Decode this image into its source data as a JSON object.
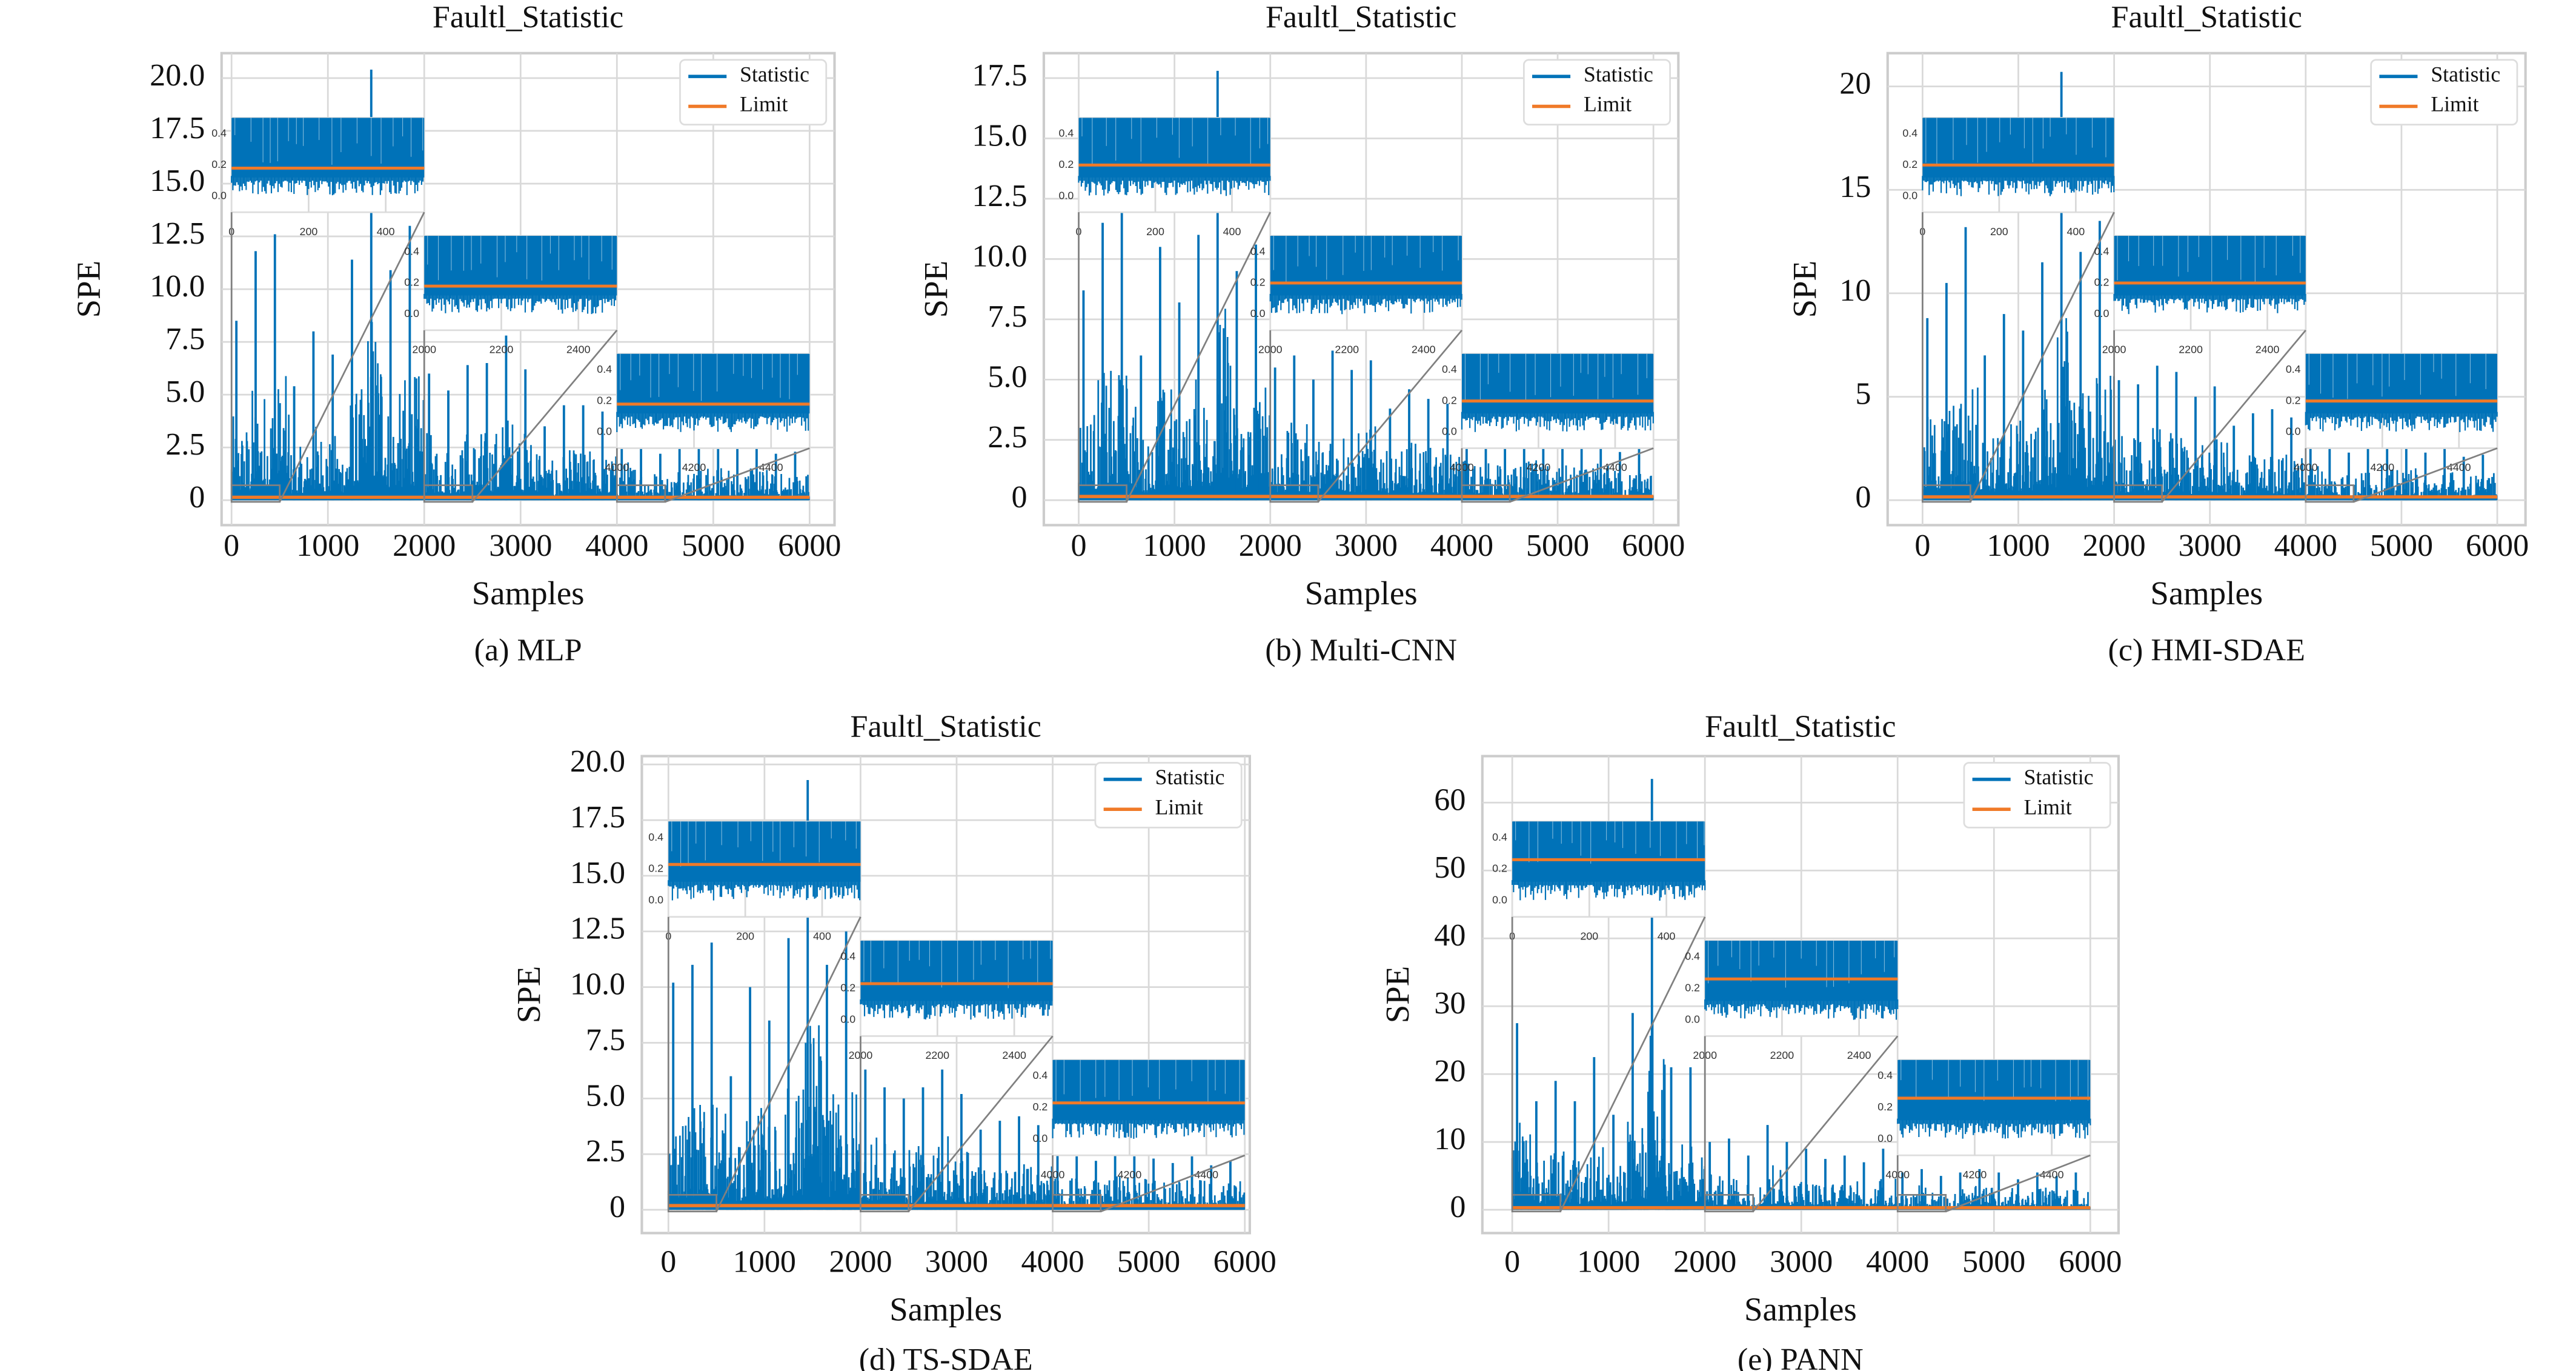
{
  "colors": {
    "statistic": "#0072b8",
    "limit": "#f07a28",
    "grid": "#d9d9d9",
    "connector": "#808080"
  },
  "chart_data": [
    {
      "type": "line",
      "title": "Faultl_Statistic",
      "xlabel": "Samples",
      "ylabel": "SPE",
      "caption": "(a) MLP",
      "xlim": [
        0,
        6000
      ],
      "ylim": [
        0,
        20.0
      ],
      "grid": true,
      "legend_position": "top-right",
      "xticks": [
        "0",
        "1000",
        "2000",
        "3000",
        "4000",
        "5000",
        "6000"
      ],
      "yticks": [
        "0",
        "2.5",
        "5.0",
        "7.5",
        "10.0",
        "12.5",
        "15.0",
        "17.5",
        "20.0"
      ],
      "series": [
        {
          "name": "Statistic",
          "x": [
            0,
            200,
            400,
            600,
            800,
            1000,
            1200,
            1400,
            1600,
            1800,
            2000,
            2200,
            2400,
            2600,
            2800,
            3000,
            3200,
            3400,
            3600,
            3800,
            4000,
            4200,
            4400,
            4600,
            4800,
            5000,
            5200,
            5400,
            5600,
            5800
          ],
          "y": [
            8.5,
            11.8,
            12.6,
            5.4,
            8.0,
            6.9,
            11.4,
            20.4,
            10.9,
            13.0,
            6.0,
            5.2,
            6.4,
            6.5,
            7.8,
            6.2,
            3.5,
            4.5,
            4.5,
            4.2,
            3.2,
            2.8,
            2.2,
            3.0,
            2.6,
            2.8,
            2.5,
            2.6,
            2.2,
            2.3
          ]
        },
        {
          "name": "Limit",
          "value": 0.1
        }
      ],
      "insets": [
        {
          "xlim": [
            0,
            500
          ],
          "xticks": [
            "0",
            "200",
            "400"
          ],
          "yticks": [
            "0.0",
            "0.2",
            "0.4"
          ]
        },
        {
          "xlim": [
            2000,
            2500
          ],
          "xticks": [
            "2000",
            "2200",
            "2400"
          ],
          "yticks": [
            "0.0",
            "0.2",
            "0.4"
          ]
        },
        {
          "xlim": [
            4000,
            4500
          ],
          "xticks": [
            "4000",
            "4200",
            "4400"
          ],
          "yticks": [
            "0.0",
            "0.2",
            "0.4"
          ]
        }
      ]
    },
    {
      "type": "line",
      "title": "Faultl_Statistic",
      "xlabel": "Samples",
      "ylabel": "SPE",
      "caption": "(b) Multi-CNN",
      "xlim": [
        0,
        6000
      ],
      "ylim": [
        0,
        17.5
      ],
      "grid": true,
      "legend_position": "top-right",
      "xticks": [
        "0",
        "1000",
        "2000",
        "3000",
        "4000",
        "5000",
        "6000"
      ],
      "yticks": [
        "0",
        "2.5",
        "5.0",
        "7.5",
        "10.0",
        "12.5",
        "15.0",
        "17.5"
      ],
      "series": [
        {
          "name": "Statistic",
          "x": [
            0,
            200,
            400,
            600,
            800,
            1000,
            1200,
            1400,
            1600,
            1800,
            2000,
            2200,
            2400,
            2600,
            2800,
            3000,
            3200,
            3400,
            3600,
            3800,
            4000,
            4200,
            4400,
            4600,
            4800,
            5000,
            5200,
            5400,
            5600,
            5800
          ],
          "y": [
            8.7,
            11.5,
            12.0,
            6.0,
            10.5,
            8.2,
            11.0,
            17.8,
            9.5,
            10.6,
            5.5,
            6.0,
            5.0,
            6.2,
            5.4,
            5.8,
            3.8,
            4.6,
            4.2,
            4.0,
            3.0,
            2.6,
            2.4,
            2.8,
            2.5,
            2.4,
            2.2,
            2.6,
            2.0,
            2.2
          ]
        },
        {
          "name": "Limit",
          "value": 0.12
        }
      ],
      "insets": [
        {
          "xlim": [
            0,
            500
          ],
          "xticks": [
            "0",
            "200",
            "400"
          ],
          "yticks": [
            "0.0",
            "0.2",
            "0.4"
          ]
        },
        {
          "xlim": [
            2000,
            2500
          ],
          "xticks": [
            "2000",
            "2200",
            "2400"
          ],
          "yticks": [
            "0.0",
            "0.2",
            "0.4"
          ]
        },
        {
          "xlim": [
            4000,
            4500
          ],
          "xticks": [
            "4000",
            "4200",
            "4400"
          ],
          "yticks": [
            "0.0",
            "0.2",
            "0.4"
          ]
        }
      ]
    },
    {
      "type": "line",
      "title": "Faultl_Statistic",
      "xlabel": "Samples",
      "ylabel": "SPE",
      "caption": "(c) HMI-SDAE",
      "xlim": [
        0,
        6000
      ],
      "ylim": [
        0,
        20
      ],
      "grid": true,
      "legend_position": "top-right",
      "xticks": [
        "0",
        "1000",
        "2000",
        "3000",
        "4000",
        "5000",
        "6000"
      ],
      "yticks": [
        "0",
        "5",
        "10",
        "15",
        "20"
      ],
      "series": [
        {
          "name": "Statistic",
          "x": [
            0,
            200,
            400,
            600,
            800,
            1000,
            1200,
            1400,
            1600,
            1800,
            2000,
            2200,
            2400,
            2600,
            2800,
            3000,
            3200,
            3400,
            3600,
            3800,
            4000,
            4200,
            4400,
            4600,
            4800,
            5000,
            5200,
            5400,
            5600,
            5800
          ],
          "y": [
            8.8,
            10.5,
            13.2,
            7.0,
            9.0,
            8.2,
            11.5,
            20.7,
            12.0,
            13.5,
            5.8,
            5.6,
            6.5,
            6.2,
            5.0,
            5.5,
            3.6,
            4.2,
            4.4,
            4.0,
            3.1,
            2.6,
            2.3,
            2.8,
            2.5,
            2.6,
            2.3,
            2.5,
            2.1,
            2.2
          ]
        },
        {
          "name": "Limit",
          "value": 0.12
        }
      ],
      "insets": [
        {
          "xlim": [
            0,
            500
          ],
          "xticks": [
            "0",
            "200",
            "400"
          ],
          "yticks": [
            "0.0",
            "0.2",
            "0.4"
          ]
        },
        {
          "xlim": [
            2000,
            2500
          ],
          "xticks": [
            "2000",
            "2200",
            "2400"
          ],
          "yticks": [
            "0.0",
            "0.2",
            "0.4"
          ]
        },
        {
          "xlim": [
            4000,
            4500
          ],
          "xticks": [
            "4000",
            "4200",
            "4400"
          ],
          "yticks": [
            "0.0",
            "0.2",
            "0.4"
          ]
        }
      ]
    },
    {
      "type": "line",
      "title": "Faultl_Statistic",
      "xlabel": "Samples",
      "ylabel": "SPE",
      "caption": "(d) TS-SDAE",
      "xlim": [
        0,
        6000
      ],
      "ylim": [
        0,
        20.0
      ],
      "grid": true,
      "legend_position": "top-right",
      "xticks": [
        "0",
        "1000",
        "2000",
        "3000",
        "4000",
        "5000",
        "6000"
      ],
      "yticks": [
        "0",
        "2.5",
        "5.0",
        "7.5",
        "10.0",
        "12.5",
        "15.0",
        "17.5",
        "20.0"
      ],
      "series": [
        {
          "name": "Statistic",
          "x": [
            0,
            200,
            400,
            600,
            800,
            1000,
            1200,
            1400,
            1600,
            1800,
            2000,
            2200,
            2400,
            2600,
            2800,
            3000,
            3200,
            3400,
            3600,
            3800,
            4000,
            4200,
            4400,
            4600,
            4800,
            5000,
            5200,
            5400,
            5600,
            5800
          ],
          "y": [
            10.2,
            11.0,
            12.0,
            6.0,
            10.0,
            8.5,
            12.2,
            19.3,
            11.0,
            12.5,
            6.3,
            5.5,
            5.0,
            5.5,
            6.3,
            5.2,
            3.6,
            4.0,
            4.2,
            3.8,
            2.7,
            2.4,
            2.2,
            2.6,
            2.4,
            2.3,
            2.1,
            2.4,
            2.0,
            2.2
          ]
        },
        {
          "name": "Limit",
          "value": 0.15
        }
      ],
      "insets": [
        {
          "xlim": [
            0,
            500
          ],
          "xticks": [
            "0",
            "200",
            "400"
          ],
          "yticks": [
            "0.0",
            "0.2",
            "0.4"
          ]
        },
        {
          "xlim": [
            2000,
            2500
          ],
          "xticks": [
            "2000",
            "2200",
            "2400"
          ],
          "yticks": [
            "0.0",
            "0.2",
            "0.4"
          ]
        },
        {
          "xlim": [
            4000,
            4500
          ],
          "xticks": [
            "4000",
            "4200",
            "4400"
          ],
          "yticks": [
            "0.0",
            "0.2",
            "0.4"
          ]
        }
      ]
    },
    {
      "type": "line",
      "title": "Faultl_Statistic",
      "xlabel": "Samples",
      "ylabel": "SPE",
      "caption": "(e) PANN",
      "xlim": [
        0,
        6000
      ],
      "ylim": [
        0,
        60
      ],
      "grid": true,
      "legend_position": "top-right",
      "xticks": [
        "0",
        "1000",
        "2000",
        "3000",
        "4000",
        "5000",
        "6000"
      ],
      "yticks": [
        "0",
        "10",
        "20",
        "30",
        "40",
        "50",
        "60"
      ],
      "series": [
        {
          "name": "Statistic",
          "x": [
            0,
            200,
            400,
            600,
            800,
            1000,
            1200,
            1400,
            1600,
            1800,
            2000,
            2200,
            2400,
            2600,
            2800,
            3000,
            3200,
            3400,
            3600,
            3800,
            4000,
            4200,
            4400,
            4600,
            4800,
            5000,
            5200,
            5400,
            5600,
            5800
          ],
          "y": [
            27.5,
            16.0,
            19.0,
            16.0,
            22.5,
            14.0,
            29.0,
            63.5,
            21.0,
            21.0,
            10.0,
            10.5,
            8.0,
            12.5,
            10.0,
            9.0,
            7.5,
            8.0,
            7.0,
            9.0,
            5.5,
            6.0,
            5.0,
            5.5,
            6.0,
            5.5,
            4.5,
            5.5,
            5.0,
            5.5
          ]
        },
        {
          "name": "Limit",
          "value": 0.18
        }
      ],
      "insets": [
        {
          "xlim": [
            0,
            500
          ],
          "xticks": [
            "0",
            "200",
            "400"
          ],
          "yticks": [
            "0.0",
            "0.2",
            "0.4"
          ]
        },
        {
          "xlim": [
            2000,
            2500
          ],
          "xticks": [
            "2000",
            "2200",
            "2400"
          ],
          "yticks": [
            "0.0",
            "0.2",
            "0.4"
          ]
        },
        {
          "xlim": [
            4000,
            4500
          ],
          "xticks": [
            "4000",
            "4200",
            "4400"
          ],
          "yticks": [
            "0.0",
            "0.2",
            "0.4"
          ]
        }
      ]
    }
  ]
}
